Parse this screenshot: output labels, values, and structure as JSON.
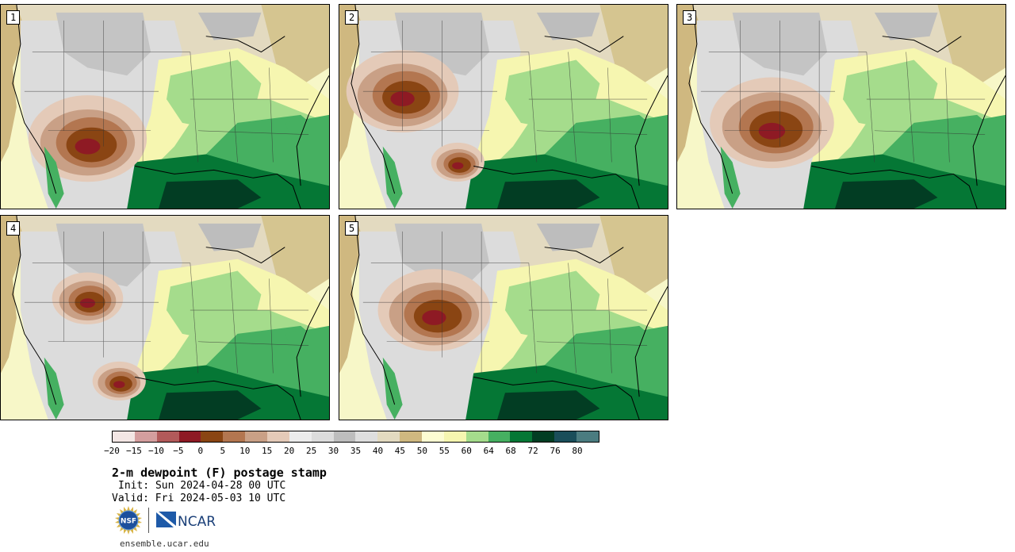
{
  "panels": [
    {
      "label": "1",
      "dry_center": [
        110,
        170
      ],
      "dry_scale": 1.0,
      "dry2": null
    },
    {
      "label": "2",
      "dry_center": [
        80,
        110
      ],
      "dry_scale": 0.95,
      "dry2": [
        150,
        200
      ]
    },
    {
      "label": "3",
      "dry_center": [
        120,
        150
      ],
      "dry_scale": 1.05,
      "dry2": null
    },
    {
      "label": "4",
      "dry_center": [
        110,
        105
      ],
      "dry_scale": 0.6,
      "dry2": [
        150,
        210
      ]
    },
    {
      "label": "5",
      "dry_center": [
        120,
        120
      ],
      "dry_scale": 0.95,
      "dry2": null
    }
  ],
  "colorbar": {
    "colors": [
      "#f3e6e4",
      "#d49e9e",
      "#b25a5a",
      "#8e1a24",
      "#8a4513",
      "#b37650",
      "#c9a086",
      "#e4cab8",
      "#ececec",
      "#dcdcdc",
      "#bdbdbd",
      "#dedede",
      "#e3dac0",
      "#cfb880",
      "#fdfdd2",
      "#f6f6b0",
      "#a5dc8c",
      "#46b061",
      "#057735",
      "#023d23",
      "#1a4e5a",
      "#4b7c80"
    ],
    "tick_labels": [
      "−20",
      "−15",
      "−10",
      "−5",
      "0",
      "5",
      "10",
      "15",
      "20",
      "25",
      "30",
      "35",
      "40",
      "45",
      "50",
      "55",
      "60",
      "64",
      "68",
      "72",
      "76",
      "80"
    ]
  },
  "title": "2-m dewpoint (F) postage stamp",
  "init": "Init: Sun 2024-04-28 00 UTC",
  "valid": "Valid: Fri 2024-05-03 10 UTC",
  "logos": {
    "nsf": "NSF",
    "ncar": "NCAR"
  },
  "website": "ensemble.ucar.edu"
}
